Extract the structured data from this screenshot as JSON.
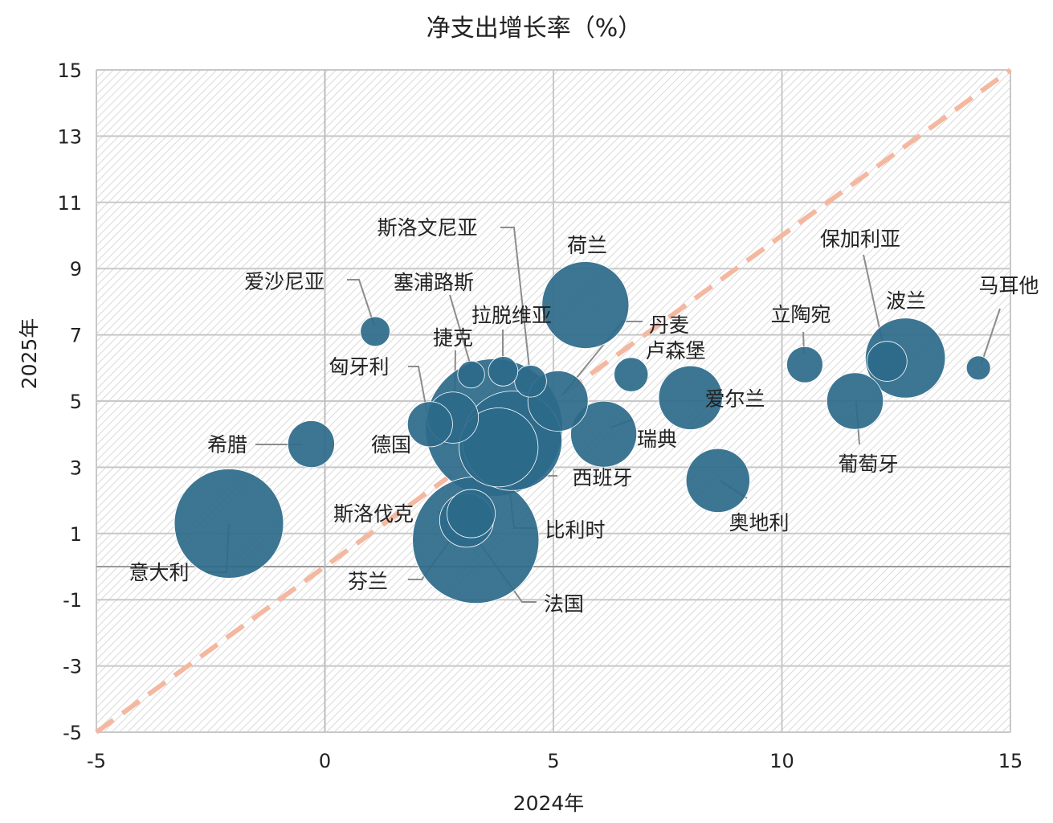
{
  "chart_data": {
    "type": "scatter",
    "subtype": "bubble",
    "title": "净支出增长率（%）",
    "xlabel": "2024年",
    "ylabel": "2025年",
    "xlim": [
      -5,
      15
    ],
    "ylim": [
      -5,
      15
    ],
    "xticks": [
      -5,
      0,
      5,
      10,
      15
    ],
    "yticks": [
      -5,
      -3,
      -1,
      1,
      3,
      5,
      7,
      9,
      11,
      13,
      15
    ],
    "grid": true,
    "legend": "none",
    "bubble_color": "#2d6a8a",
    "reference_line": {
      "style": "dashed",
      "color": "#f4b8a0",
      "from": [
        -5,
        -5
      ],
      "to": [
        15,
        15
      ]
    },
    "points": [
      {
        "name": "意大利",
        "x": -2.1,
        "y": 1.3,
        "size": 82
      },
      {
        "name": "希腊",
        "x": -0.3,
        "y": 3.7,
        "size": 15
      },
      {
        "name": "爱沙尼亚",
        "x": 1.1,
        "y": 7.1,
        "size": 6
      },
      {
        "name": "德国",
        "x": 3.7,
        "y": 4.2,
        "size": 130
      },
      {
        "name": "匈牙利",
        "x": 2.3,
        "y": 4.3,
        "size": 14
      },
      {
        "name": "捷克",
        "x": 2.8,
        "y": 4.5,
        "size": 18
      },
      {
        "name": "塞浦路斯",
        "x": 3.2,
        "y": 5.8,
        "size": 5
      },
      {
        "name": "拉脱维亚",
        "x": 3.9,
        "y": 5.9,
        "size": 6
      },
      {
        "name": "斯洛文尼亚",
        "x": 4.5,
        "y": 5.6,
        "size": 7
      },
      {
        "name": "西班牙",
        "x": 4.1,
        "y": 3.8,
        "size": 68
      },
      {
        "name": "比利时",
        "x": 3.8,
        "y": 3.6,
        "size": 43
      },
      {
        "name": "斯洛伐克",
        "x": 3.2,
        "y": 1.6,
        "size": 16
      },
      {
        "name": "芬兰",
        "x": 3.1,
        "y": 1.4,
        "size": 20
      },
      {
        "name": "法国",
        "x": 3.3,
        "y": 0.8,
        "size": 110
      },
      {
        "name": "荷兰",
        "x": 5.7,
        "y": 7.9,
        "size": 52
      },
      {
        "name": "丹麦",
        "x": 5.1,
        "y": 5.0,
        "size": 25
      },
      {
        "name": "卢森堡",
        "x": 6.7,
        "y": 5.8,
        "size": 8
      },
      {
        "name": "瑞典",
        "x": 6.1,
        "y": 4.0,
        "size": 30
      },
      {
        "name": "爱尔兰",
        "x": 8.0,
        "y": 5.1,
        "size": 28
      },
      {
        "name": "奥地利",
        "x": 8.6,
        "y": 2.6,
        "size": 28
      },
      {
        "name": "立陶宛",
        "x": 10.5,
        "y": 6.1,
        "size": 9
      },
      {
        "name": "葡萄牙",
        "x": 11.6,
        "y": 5.0,
        "size": 22
      },
      {
        "name": "保加利亚",
        "x": 12.3,
        "y": 6.2,
        "size": 11
      },
      {
        "name": "波兰",
        "x": 12.7,
        "y": 6.3,
        "size": 44
      },
      {
        "name": "马耳他",
        "x": 14.3,
        "y": 6.0,
        "size": 4
      }
    ]
  }
}
